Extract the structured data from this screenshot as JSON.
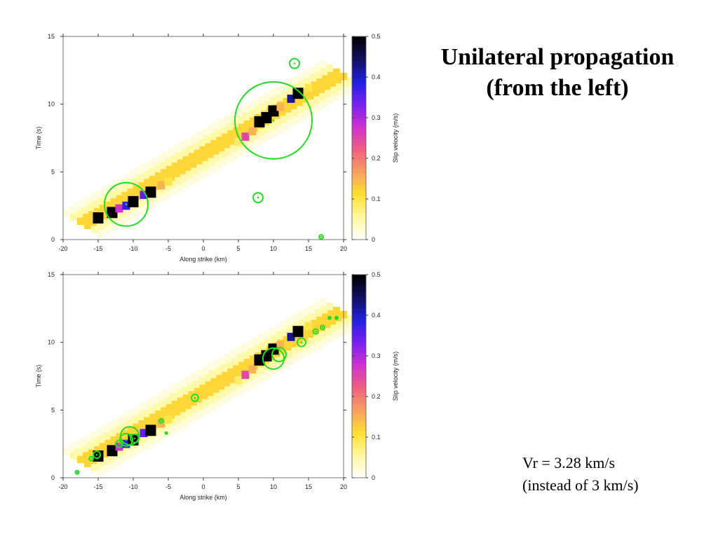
{
  "slide": {
    "title_line1": "Unilateral propagation",
    "title_line2": "(from the left)",
    "note_line1": "Vr = 3.28 km/s",
    "note_line2": "(instead of 3 km/s)"
  },
  "colors": {
    "colormap": [
      "#ffffff",
      "#fff8a0",
      "#ffe030",
      "#f8a060",
      "#f06080",
      "#d030d0",
      "#7a20f0",
      "#2020e0",
      "#101060",
      "#000000"
    ],
    "circle": "#22dd22"
  },
  "chart_data": [
    {
      "type": "heatmap",
      "id": "top",
      "xlabel": "Along strike (km)",
      "ylabel": "Time (s)",
      "colorbar_label": "Slip velocity (m/s)",
      "xlim": [
        -20,
        20
      ],
      "ylim": [
        0,
        15
      ],
      "clim": [
        0,
        0.5
      ],
      "xticks": [
        "-20",
        "-15",
        "-10",
        "-5",
        "0",
        "5",
        "10",
        "15",
        "20"
      ],
      "yticks": [
        "0",
        "5",
        "10",
        "15"
      ],
      "cticks": [
        "0",
        "0.1",
        "0.2",
        "0.3",
        "0.4",
        "0.5"
      ],
      "rupture": {
        "x_start": -17,
        "x_end": 19.5,
        "t_start": 1.2,
        "t_end": 12.2,
        "band_offsets_km": [
          -2.5,
          -1.5,
          -0.5,
          0.5,
          1.5,
          2.5
        ],
        "band_levels": [
          0.02,
          0.05,
          0.12,
          0.12,
          0.05,
          0.02
        ]
      },
      "patches": [
        {
          "x": -16.5,
          "t": 1.6,
          "v": 0.12
        },
        {
          "x": -15,
          "t": 1.6,
          "v": 0.5
        },
        {
          "x": -13,
          "t": 2.0,
          "v": 0.5
        },
        {
          "x": -12,
          "t": 2.3,
          "v": 0.28
        },
        {
          "x": -11,
          "t": 2.5,
          "v": 0.38
        },
        {
          "x": -10,
          "t": 2.8,
          "v": 0.5
        },
        {
          "x": -8.5,
          "t": 3.3,
          "v": 0.35
        },
        {
          "x": -7.5,
          "t": 3.5,
          "v": 0.5
        },
        {
          "x": -6,
          "t": 4.0,
          "v": 0.15
        },
        {
          "x": -5,
          "t": 4.3,
          "v": 0.1
        },
        {
          "x": 5,
          "t": 7.2,
          "v": 0.08
        },
        {
          "x": 6,
          "t": 7.6,
          "v": 0.25
        },
        {
          "x": 7,
          "t": 8.0,
          "v": 0.15
        },
        {
          "x": 8,
          "t": 8.7,
          "v": 0.5
        },
        {
          "x": 9,
          "t": 9.0,
          "v": 0.5
        },
        {
          "x": 10,
          "t": 9.5,
          "v": 0.5
        },
        {
          "x": 11,
          "t": 9.8,
          "v": 0.15
        },
        {
          "x": 12.5,
          "t": 10.4,
          "v": 0.42
        },
        {
          "x": 13.5,
          "t": 10.8,
          "v": 0.5
        },
        {
          "x": 15,
          "t": 11.2,
          "v": 0.1
        }
      ],
      "circles": [
        {
          "x": -11,
          "t": 2.6,
          "r_km": 3.1
        },
        {
          "x": 10,
          "t": 8.8,
          "r_km": 5.5
        },
        {
          "x": 13,
          "t": 13.0,
          "r_km": 0.7
        },
        {
          "x": 7.8,
          "t": 3.1,
          "r_km": 0.7
        },
        {
          "x": 16.8,
          "t": 0.2,
          "r_km": 0.3
        }
      ]
    },
    {
      "type": "heatmap",
      "id": "bottom",
      "xlabel": "Along strike (km)",
      "ylabel": "Time (s)",
      "colorbar_label": "Slip velocity (m/s)",
      "xlim": [
        -20,
        20
      ],
      "ylim": [
        0,
        15
      ],
      "clim": [
        0,
        0.5
      ],
      "xticks": [
        "-20",
        "-15",
        "-10",
        "-5",
        "0",
        "5",
        "10",
        "15",
        "20"
      ],
      "yticks": [
        "0",
        "5",
        "10",
        "15"
      ],
      "cticks": [
        "0",
        "0.1",
        "0.2",
        "0.3",
        "0.4",
        "0.5"
      ],
      "rupture": {
        "x_start": -17,
        "x_end": 19.5,
        "t_start": 1.2,
        "t_end": 12.2,
        "band_offsets_km": [
          -2.5,
          -1.5,
          -0.5,
          0.5,
          1.5,
          2.5
        ],
        "band_levels": [
          0.02,
          0.05,
          0.12,
          0.12,
          0.05,
          0.02
        ]
      },
      "patches": [
        {
          "x": -16.5,
          "t": 1.6,
          "v": 0.12
        },
        {
          "x": -15,
          "t": 1.6,
          "v": 0.5
        },
        {
          "x": -13,
          "t": 2.0,
          "v": 0.5
        },
        {
          "x": -12,
          "t": 2.3,
          "v": 0.28
        },
        {
          "x": -11,
          "t": 2.5,
          "v": 0.38
        },
        {
          "x": -10,
          "t": 2.8,
          "v": 0.5
        },
        {
          "x": -8.5,
          "t": 3.3,
          "v": 0.35
        },
        {
          "x": -7.5,
          "t": 3.5,
          "v": 0.5
        },
        {
          "x": -6,
          "t": 4.0,
          "v": 0.15
        },
        {
          "x": -5,
          "t": 4.3,
          "v": 0.1
        },
        {
          "x": 5,
          "t": 7.2,
          "v": 0.08
        },
        {
          "x": 6,
          "t": 7.6,
          "v": 0.25
        },
        {
          "x": 7,
          "t": 8.0,
          "v": 0.15
        },
        {
          "x": 8,
          "t": 8.7,
          "v": 0.5
        },
        {
          "x": 9,
          "t": 9.0,
          "v": 0.5
        },
        {
          "x": 10,
          "t": 9.5,
          "v": 0.5
        },
        {
          "x": 11,
          "t": 9.8,
          "v": 0.15
        },
        {
          "x": 12.5,
          "t": 10.4,
          "v": 0.42
        },
        {
          "x": 13.5,
          "t": 10.8,
          "v": 0.5
        },
        {
          "x": 15,
          "t": 11.2,
          "v": 0.1
        }
      ],
      "circles": [
        {
          "x": -18,
          "t": 0.4,
          "r_km": 0.25
        },
        {
          "x": -16,
          "t": 1.4,
          "r_km": 0.3
        },
        {
          "x": -15.2,
          "t": 1.7,
          "r_km": 0.5
        },
        {
          "x": -12,
          "t": 2.5,
          "r_km": 0.5
        },
        {
          "x": -11,
          "t": 2.8,
          "r_km": 0.9
        },
        {
          "x": -10.5,
          "t": 3.1,
          "r_km": 1.3
        },
        {
          "x": -9.8,
          "t": 2.9,
          "r_km": 0.6
        },
        {
          "x": -6,
          "t": 4.2,
          "r_km": 0.3
        },
        {
          "x": -5.3,
          "t": 3.3,
          "r_km": 0.15
        },
        {
          "x": -1.2,
          "t": 5.9,
          "r_km": 0.5
        },
        {
          "x": 10,
          "t": 8.8,
          "r_km": 1.5
        },
        {
          "x": 10.8,
          "t": 9.1,
          "r_km": 1.0
        },
        {
          "x": 14,
          "t": 10.0,
          "r_km": 0.6
        },
        {
          "x": 16,
          "t": 10.8,
          "r_km": 0.35
        },
        {
          "x": 17,
          "t": 11.1,
          "r_km": 0.3
        },
        {
          "x": 18,
          "t": 11.8,
          "r_km": 0.2
        },
        {
          "x": 19,
          "t": 11.8,
          "r_km": 0.2
        }
      ]
    }
  ]
}
